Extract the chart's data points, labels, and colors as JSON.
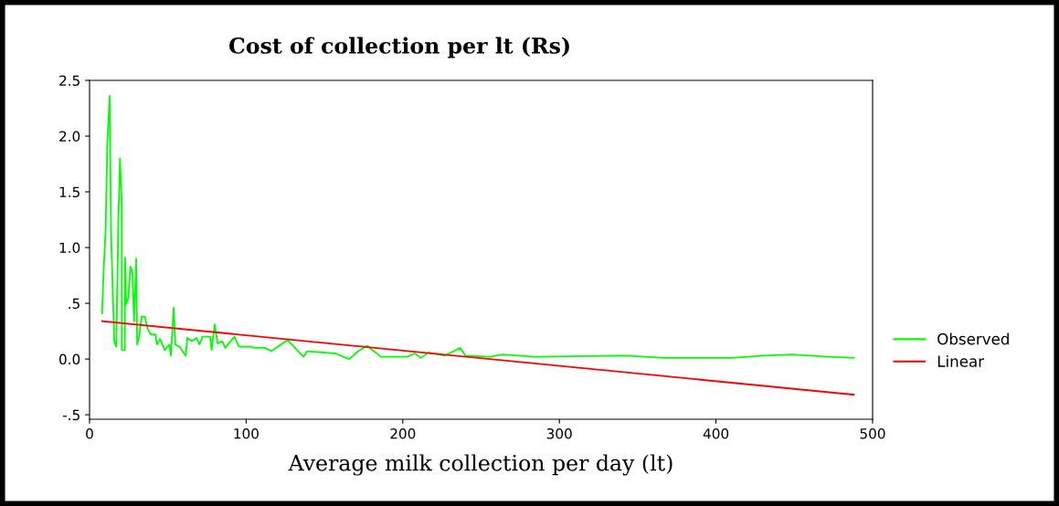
{
  "chart_data": {
    "type": "line",
    "title": "Cost of collection per lt (Rs)",
    "xlabel": "Average milk collection per day (lt)",
    "xlim": [
      0,
      500
    ],
    "xticks": [
      0,
      100,
      200,
      300,
      400,
      500
    ],
    "ylim": [
      -0.54,
      2.5
    ],
    "yticks": [
      {
        "value": 2.5,
        "label": "2.5"
      },
      {
        "value": 2.0,
        "label": "2.0"
      },
      {
        "value": 1.5,
        "label": "1.5"
      },
      {
        "value": 1.0,
        "label": "1.0"
      },
      {
        "value": 0.5,
        "label": ".5"
      },
      {
        "value": 0.0,
        "label": "0.0"
      },
      {
        "value": -0.5,
        "label": "-.5"
      }
    ],
    "grid": false,
    "legend": "right",
    "series": [
      {
        "name": "Observed",
        "color": "#00ff00",
        "x": [
          8,
          9,
          10.3,
          11.3,
          12.8,
          13.8,
          15.8,
          17.1,
          18.3,
          19.4,
          20.6,
          20.6,
          22.5,
          22.7,
          23.4,
          24.8,
          26.1,
          27.4,
          28.4,
          29.8,
          30.4,
          31.5,
          33.3,
          35.2,
          37.2,
          39.1,
          42,
          43,
          45,
          48,
          50.9,
          51.9,
          53.7,
          54.8,
          57.5,
          61.4,
          62.4,
          65.3,
          68.2,
          70.2,
          72.1,
          77,
          77.9,
          79.9,
          81.8,
          84.7,
          86.6,
          92.5,
          95.4,
          102,
          106,
          112,
          116,
          126.5,
          136.5,
          139,
          157,
          165.7,
          171.6,
          177.2,
          186,
          202.6,
          207.7,
          211.5,
          216.5,
          226.7,
          236.8,
          240,
          256,
          263.6,
          284,
          341.9,
          367.3,
          410.4,
          430.7,
          448.5,
          471.3,
          488
        ],
        "values": [
          0.41,
          0.79,
          1.17,
          1.91,
          2.36,
          1.09,
          0.16,
          0.11,
          1.17,
          1.8,
          1.41,
          0.08,
          0.08,
          0.91,
          0.49,
          0.55,
          0.83,
          0.78,
          0.34,
          0.9,
          0.13,
          0.19,
          0.38,
          0.38,
          0.27,
          0.22,
          0.22,
          0.13,
          0.18,
          0.08,
          0.13,
          0.03,
          0.46,
          0.13,
          0.11,
          0.03,
          0.19,
          0.16,
          0.19,
          0.13,
          0.2,
          0.2,
          0.08,
          0.31,
          0.14,
          0.16,
          0.1,
          0.2,
          0.11,
          0.11,
          0.1,
          0.1,
          0.07,
          0.17,
          0.02,
          0.07,
          0.05,
          0.0,
          0.07,
          0.12,
          0.02,
          0.02,
          0.05,
          0.01,
          0.06,
          0.03,
          0.1,
          0.03,
          0.02,
          0.04,
          0.02,
          0.03,
          0.01,
          0.01,
          0.03,
          0.04,
          0.02,
          0.01
        ]
      },
      {
        "name": "Linear",
        "color": "#ff0000",
        "x": [
          8,
          488
        ],
        "values": [
          0.34,
          -0.32
        ]
      }
    ]
  }
}
